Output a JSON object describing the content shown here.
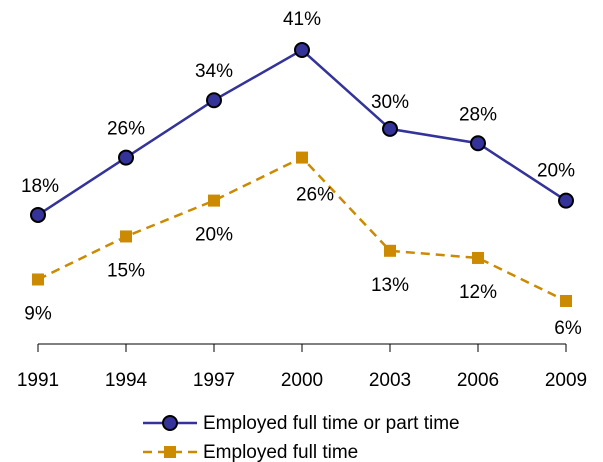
{
  "chart_data": {
    "type": "line",
    "categories": [
      "1991",
      "1994",
      "1997",
      "2000",
      "2003",
      "2006",
      "2009"
    ],
    "series": [
      {
        "name": "Employed full time or part time",
        "color": "#333399",
        "marker": "circle",
        "values": [
          18,
          26,
          34,
          41,
          30,
          28,
          20
        ],
        "value_labels": [
          "18%",
          "26%",
          "34%",
          "41%",
          "30%",
          "28%",
          "20%"
        ]
      },
      {
        "name": "Employed full time",
        "color": "#cc8a00",
        "marker": "square",
        "dashed": true,
        "values": [
          9,
          15,
          20,
          26,
          13,
          12,
          6
        ],
        "value_labels": [
          "9%",
          "15%",
          "20%",
          "26%",
          "13%",
          "12%",
          "6%"
        ]
      }
    ]
  }
}
